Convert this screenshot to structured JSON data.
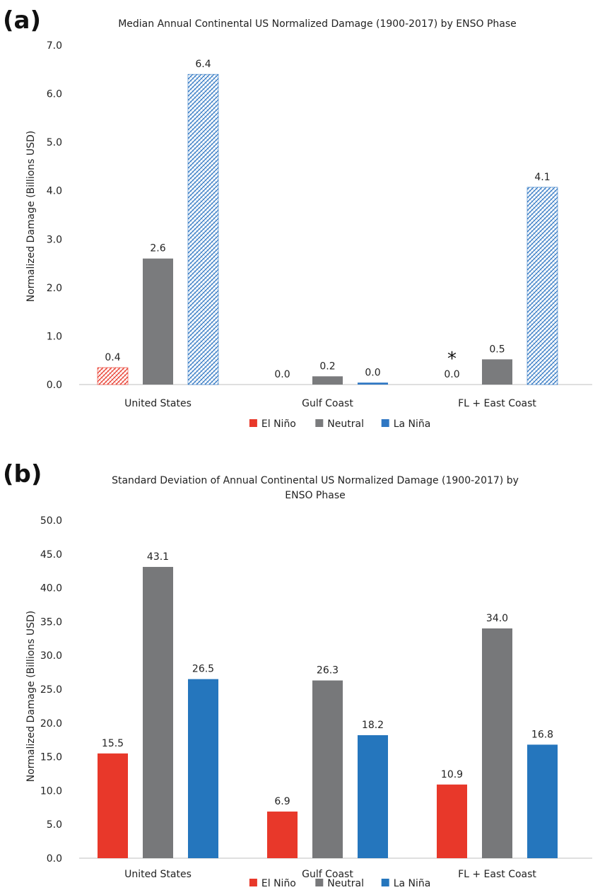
{
  "figure": {
    "panels": [
      "(a)",
      "(b)"
    ]
  },
  "chart_data": [
    {
      "type": "bar",
      "panel": "(a)",
      "title": "Median Annual Continental US Normalized Damage (1900-2017) by ENSO Phase",
      "title_lines": [
        "Median Annual Continental US Normalized Damage (1900-2017) by ENSO Phase"
      ],
      "ylabel": "Normalized Damage (Billions USD)",
      "xlabel": "",
      "categories": [
        "United States",
        "Gulf Coast",
        "FL + East Coast"
      ],
      "ylim": [
        0,
        7
      ],
      "yticks": [
        "0.0",
        "1.0",
        "2.0",
        "3.0",
        "4.0",
        "5.0",
        "6.0",
        "7.0"
      ],
      "grid": false,
      "legend": "bottom",
      "series": [
        {
          "name": "El Niño",
          "color": "#e8382a",
          "values": [
            0.35,
            0.0,
            0.0
          ],
          "labels": [
            "0.4",
            "0.0",
            "0.0"
          ],
          "pattern": [
            true,
            false,
            false
          ]
        },
        {
          "name": "Neutral",
          "color": "#7a7b7d",
          "values": [
            2.6,
            0.17,
            0.52
          ],
          "labels": [
            "2.6",
            "0.2",
            "0.5"
          ],
          "pattern": [
            false,
            false,
            false
          ]
        },
        {
          "name": "La Niña",
          "color": "#2f77c3",
          "values": [
            6.4,
            0.04,
            4.07
          ],
          "labels": [
            "6.4",
            "0.0",
            "4.1"
          ],
          "pattern": [
            true,
            false,
            true
          ]
        }
      ],
      "annotation": {
        "text": "*",
        "category": "FL + East Coast",
        "series": "El Niño"
      }
    },
    {
      "type": "bar",
      "panel": "(b)",
      "title": "Standard Deviation of Annual Continental US Normalized Damage (1900-2017) by ENSO Phase",
      "title_lines": [
        "Standard Deviation of Annual Continental US Normalized Damage (1900-2017) by",
        "ENSO Phase"
      ],
      "ylabel": "Normalized Damage (Billions USD)",
      "xlabel": "",
      "categories": [
        "United States",
        "Gulf Coast",
        "FL + East Coast"
      ],
      "ylim": [
        0,
        50
      ],
      "yticks": [
        "0.0",
        "5.0",
        "10.0",
        "15.0",
        "20.0",
        "25.0",
        "30.0",
        "35.0",
        "40.0",
        "45.0",
        "50.0"
      ],
      "grid": false,
      "legend": "bottom",
      "series": [
        {
          "name": "El Niño",
          "color": "#e8382a",
          "values": [
            15.5,
            6.9,
            10.9
          ],
          "labels": [
            "15.5",
            "6.9",
            "10.9"
          ],
          "pattern": [
            false,
            false,
            false
          ]
        },
        {
          "name": "Neutral",
          "color": "#77787a",
          "values": [
            43.1,
            26.3,
            34.0
          ],
          "labels": [
            "43.1",
            "26.3",
            "34.0"
          ],
          "pattern": [
            false,
            false,
            false
          ]
        },
        {
          "name": "La Niña",
          "color": "#2576bd",
          "values": [
            26.5,
            18.2,
            16.8
          ],
          "labels": [
            "26.5",
            "18.2",
            "16.8"
          ],
          "pattern": [
            false,
            false,
            false
          ]
        }
      ]
    }
  ]
}
